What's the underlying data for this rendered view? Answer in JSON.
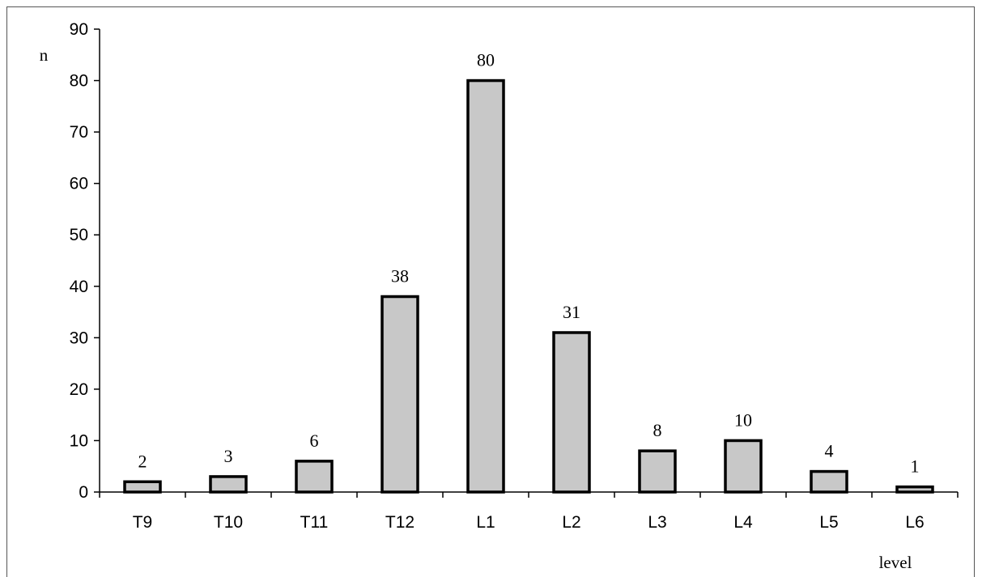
{
  "chart_data": {
    "type": "bar",
    "title": "",
    "ylabel": "n",
    "xlabel": "level",
    "categories": [
      "T9",
      "T10",
      "T11",
      "T12",
      "L1",
      "L2",
      "L3",
      "L4",
      "L5",
      "L6"
    ],
    "values": [
      2,
      3,
      6,
      38,
      80,
      31,
      8,
      10,
      4,
      1
    ],
    "data_labels": [
      "2",
      "3",
      "6",
      "38",
      "80",
      "31",
      "8",
      "10",
      "4",
      "1"
    ],
    "ylim": [
      0,
      90
    ],
    "yticks": [
      0,
      10,
      20,
      30,
      40,
      50,
      60,
      70,
      80,
      90
    ],
    "grid": false,
    "legend": "none",
    "bar_fill": "#c8c8c8",
    "bar_stroke": "#000000"
  }
}
